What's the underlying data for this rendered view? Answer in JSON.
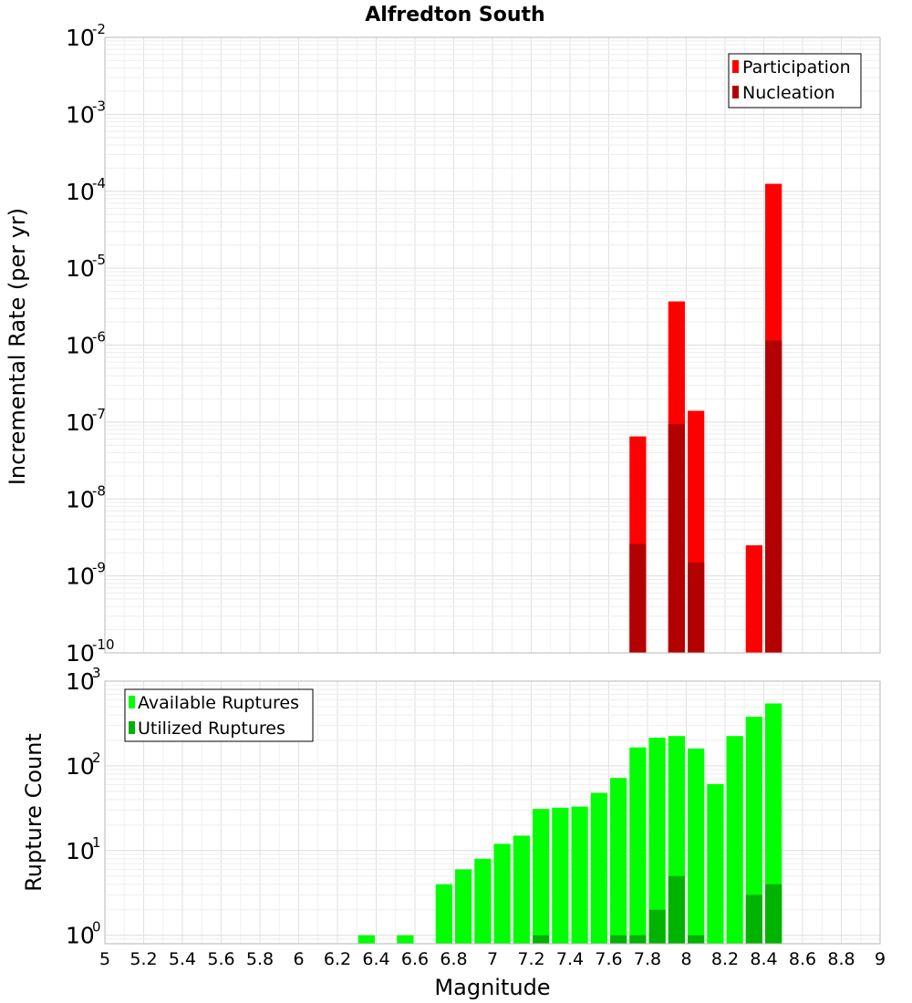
{
  "chart_data": {
    "title": "Alfredton South",
    "xlabel": "Magnitude",
    "xlim": [
      5,
      9
    ],
    "x_ticks": [
      "5",
      "5.2",
      "5.4",
      "5.6",
      "5.8",
      "6",
      "6.2",
      "6.4",
      "6.6",
      "6.8",
      "7",
      "7.2",
      "7.4",
      "7.6",
      "7.8",
      "8",
      "8.2",
      "8.4",
      "8.6",
      "8.8",
      "9"
    ],
    "bin_width": 0.1,
    "panels": [
      {
        "type": "bar",
        "ylabel": "Incremental Rate (per yr)",
        "yscale": "log",
        "ylim_exp": [
          -10,
          -2
        ],
        "grid": true,
        "legend_position": "top-right",
        "series": [
          {
            "name": "Participation",
            "color": "#ff0000",
            "points": [
              {
                "x": 7.75,
                "y": 6.5e-08
              },
              {
                "x": 7.95,
                "y": 3.7e-06
              },
              {
                "x": 8.05,
                "y": 1.4e-07
              },
              {
                "x": 8.35,
                "y": 2.5e-09
              },
              {
                "x": 8.45,
                "y": 0.000125
              }
            ]
          },
          {
            "name": "Nucleation",
            "color": "#b30000",
            "points": [
              {
                "x": 7.75,
                "y": 2.6e-09
              },
              {
                "x": 7.95,
                "y": 9.4e-08
              },
              {
                "x": 8.05,
                "y": 1.5e-09
              },
              {
                "x": 8.45,
                "y": 1.15e-06
              }
            ]
          }
        ]
      },
      {
        "type": "bar",
        "ylabel": "Rupture Count",
        "yscale": "log",
        "ylim_exp": [
          -0.1,
          3
        ],
        "ytick_exps": [
          0,
          1,
          2,
          3
        ],
        "grid": true,
        "legend_position": "top-left",
        "series": [
          {
            "name": "Available Ruptures",
            "color": "#00ff00",
            "points": [
              {
                "x": 6.35,
                "y": 1
              },
              {
                "x": 6.55,
                "y": 1
              },
              {
                "x": 6.75,
                "y": 4
              },
              {
                "x": 6.85,
                "y": 6
              },
              {
                "x": 6.95,
                "y": 8
              },
              {
                "x": 7.05,
                "y": 12
              },
              {
                "x": 7.15,
                "y": 15
              },
              {
                "x": 7.25,
                "y": 31
              },
              {
                "x": 7.35,
                "y": 32
              },
              {
                "x": 7.45,
                "y": 33
              },
              {
                "x": 7.55,
                "y": 48
              },
              {
                "x": 7.65,
                "y": 72
              },
              {
                "x": 7.75,
                "y": 165
              },
              {
                "x": 7.85,
                "y": 215
              },
              {
                "x": 7.95,
                "y": 225
              },
              {
                "x": 8.05,
                "y": 160
              },
              {
                "x": 8.15,
                "y": 61
              },
              {
                "x": 8.25,
                "y": 225
              },
              {
                "x": 8.35,
                "y": 380
              },
              {
                "x": 8.45,
                "y": 545
              }
            ]
          },
          {
            "name": "Utilized Ruptures",
            "color": "#00b300",
            "points": [
              {
                "x": 7.25,
                "y": 1
              },
              {
                "x": 7.65,
                "y": 1
              },
              {
                "x": 7.75,
                "y": 1
              },
              {
                "x": 7.85,
                "y": 2
              },
              {
                "x": 7.95,
                "y": 5
              },
              {
                "x": 8.05,
                "y": 1
              },
              {
                "x": 8.35,
                "y": 3
              },
              {
                "x": 8.45,
                "y": 4
              }
            ]
          }
        ]
      }
    ]
  }
}
